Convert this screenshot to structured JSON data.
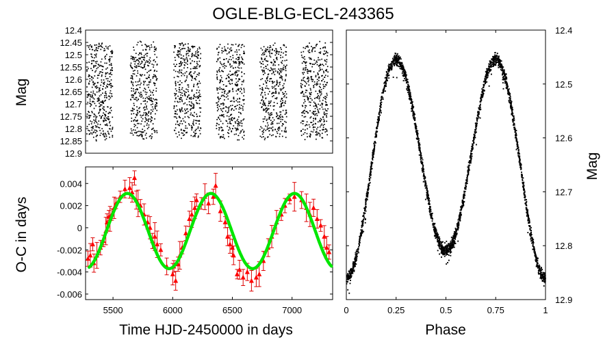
{
  "title": "OGLE-BLG-ECL-243365",
  "chart_data": [
    {
      "id": "lightcurve",
      "type": "scatter",
      "title": "",
      "xlabel": "",
      "ylabel": "Mag",
      "xlim": [
        5250,
        7350
      ],
      "ylim": [
        12.4,
        12.9
      ],
      "y_inverted": true,
      "ytick_labels": [
        "12.4",
        "12.45",
        "12.5",
        "12.55",
        "12.6",
        "12.65",
        "12.7",
        "12.75",
        "12.8",
        "12.85",
        "12.9"
      ],
      "seasons": [
        {
          "start": 5260,
          "end": 5480
        },
        {
          "start": 5630,
          "end": 5860
        },
        {
          "start": 6000,
          "end": 6230
        },
        {
          "start": 6360,
          "end": 6600
        },
        {
          "start": 6730,
          "end": 6960
        },
        {
          "start": 7080,
          "end": 7310
        }
      ],
      "mag_range": [
        12.455,
        12.84
      ],
      "color": "#000000"
    },
    {
      "id": "oc",
      "type": "scatter",
      "xlabel": "Time HJD-2450000 in days",
      "ylabel": "O-C in days",
      "xlim": [
        5270,
        7340
      ],
      "ylim": [
        -0.0065,
        0.0055
      ],
      "xtick_labels": [
        "5500",
        "6000",
        "6500",
        "7000"
      ],
      "ytick_labels": [
        "0.004",
        "0.002",
        "0",
        "-0.002",
        "-0.004",
        "-0.006"
      ],
      "points": [
        [
          5290,
          -0.0028
        ],
        [
          5310,
          -0.0025
        ],
        [
          5330,
          -0.0015
        ],
        [
          5340,
          -0.0032
        ],
        [
          5365,
          -0.0025
        ],
        [
          5395,
          -0.0018
        ],
        [
          5420,
          -0.0012
        ],
        [
          5440,
          -0.0003
        ],
        [
          5450,
          0.0005
        ],
        [
          5465,
          0.001
        ],
        [
          5475,
          0.0008
        ],
        [
          5490,
          0.0012
        ],
        [
          5510,
          0.0018
        ],
        [
          5525,
          0.0022
        ],
        [
          5560,
          0.0028
        ],
        [
          5600,
          0.0035
        ],
        [
          5640,
          0.0036
        ],
        [
          5660,
          0.0032
        ],
        [
          5680,
          0.0045
        ],
        [
          5695,
          0.0025
        ],
        [
          5710,
          0.0022
        ],
        [
          5730,
          0.002
        ],
        [
          5760,
          0.0012
        ],
        [
          5790,
          0.0005
        ],
        [
          5810,
          0.0
        ],
        [
          5830,
          -0.0012
        ],
        [
          5850,
          -0.0008
        ],
        [
          5870,
          -0.0015
        ],
        [
          5900,
          -0.002
        ],
        [
          5950,
          -0.0035
        ],
        [
          6000,
          -0.0042
        ],
        [
          6010,
          -0.0035
        ],
        [
          6025,
          -0.0048
        ],
        [
          6045,
          -0.0033
        ],
        [
          6060,
          -0.0025
        ],
        [
          6080,
          -0.0018
        ],
        [
          6110,
          -0.0005
        ],
        [
          6140,
          0.0008
        ],
        [
          6160,
          0.0012
        ],
        [
          6185,
          0.0018
        ],
        [
          6200,
          0.0025
        ],
        [
          6240,
          0.0022
        ],
        [
          6270,
          0.0028
        ],
        [
          6300,
          0.0022
        ],
        [
          6340,
          0.0028
        ],
        [
          6360,
          0.0038
        ],
        [
          6400,
          0.0015
        ],
        [
          6440,
          0.0005
        ],
        [
          6460,
          -0.0008
        ],
        [
          6480,
          -0.0015
        ],
        [
          6500,
          -0.0018
        ],
        [
          6510,
          -0.0025
        ],
        [
          6540,
          -0.0042
        ],
        [
          6560,
          -0.0038
        ],
        [
          6590,
          -0.0045
        ],
        [
          6625,
          -0.004
        ],
        [
          6660,
          -0.0048
        ],
        [
          6700,
          -0.0045
        ],
        [
          6725,
          -0.0042
        ],
        [
          6760,
          -0.003
        ],
        [
          6800,
          -0.0018
        ],
        [
          6830,
          -0.0008
        ],
        [
          6870,
          0.0005
        ],
        [
          6910,
          0.0012
        ],
        [
          6940,
          0.002
        ],
        [
          6980,
          0.0026
        ],
        [
          7020,
          0.0028
        ],
        [
          7080,
          0.0025
        ],
        [
          7120,
          0.0018
        ],
        [
          7150,
          0.0012
        ],
        [
          7180,
          0.0018
        ],
        [
          7210,
          0.0008
        ],
        [
          7240,
          0.0002
        ],
        [
          7270,
          -0.0008
        ],
        [
          7290,
          -0.0018
        ],
        [
          7310,
          -0.0022
        ]
      ],
      "fit": {
        "type": "line",
        "description": "sinusoidal fit",
        "offset": -0.0003,
        "amplitude": 0.0034,
        "period_days": 700,
        "peak_at": 5620,
        "color": "#00e600"
      },
      "point_color": "#ff0000",
      "error_color": "#dd0000"
    },
    {
      "id": "phased",
      "type": "scatter",
      "xlabel": "Phase",
      "ylabel": "Mag",
      "xlim": [
        0,
        1
      ],
      "ylim": [
        12.4,
        12.9
      ],
      "y_inverted": true,
      "xtick_labels": [
        "0",
        "0.25",
        "0.5",
        "0.75",
        "1"
      ],
      "ytick_labels": [
        "12.4",
        "12.5",
        "12.6",
        "12.7",
        "12.8",
        "12.9"
      ],
      "max_mag_bright": 12.455,
      "primary_min_mag": 12.86,
      "secondary_min_mag": 12.81,
      "color": "#000000"
    }
  ]
}
